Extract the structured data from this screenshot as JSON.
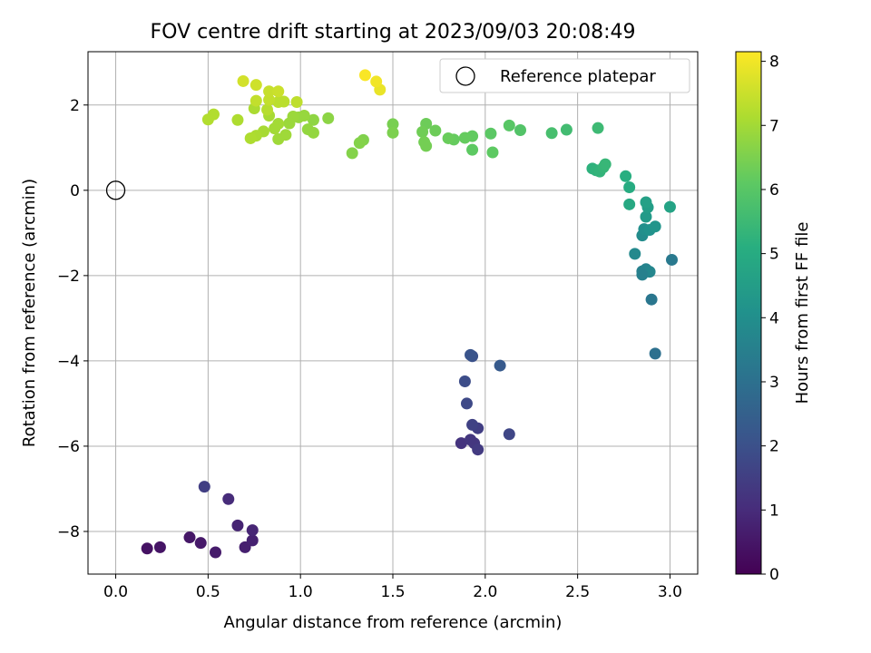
{
  "chart_data": {
    "type": "scatter",
    "title": "FOV centre drift starting at 2023/09/03 20:08:49",
    "xlabel": "Angular distance from reference (arcmin)",
    "ylabel": "Rotation from reference (arcmin)",
    "xlim": [
      -0.15,
      3.15
    ],
    "ylim": [
      -9.0,
      3.25
    ],
    "xticks": [
      0.0,
      0.5,
      1.0,
      1.5,
      2.0,
      2.5,
      3.0
    ],
    "xtick_labels": [
      "0.0",
      "0.5",
      "1.0",
      "1.5",
      "2.0",
      "2.5",
      "3.0"
    ],
    "yticks": [
      -8,
      -6,
      -4,
      -2,
      0,
      2
    ],
    "ytick_labels": [
      "−8",
      "−6",
      "−4",
      "−2",
      "0",
      "2"
    ],
    "grid": true,
    "legend": {
      "label": "Reference platepar",
      "position": "top-right"
    },
    "reference_point": {
      "x": 0.0,
      "y": 0.0
    },
    "colorbar": {
      "label": "Hours from first FF file",
      "min": 0,
      "max": 8.15,
      "ticks": [
        0,
        1,
        2,
        3,
        4,
        5,
        6,
        7,
        8
      ],
      "colormap": "viridis"
    },
    "points": [
      {
        "x": 0.17,
        "y": -8.4,
        "c": 0.4
      },
      {
        "x": 0.24,
        "y": -8.37,
        "c": 0.45
      },
      {
        "x": 0.4,
        "y": -8.14,
        "c": 0.5
      },
      {
        "x": 0.46,
        "y": -8.27,
        "c": 0.55
      },
      {
        "x": 0.54,
        "y": -8.49,
        "c": 0.6
      },
      {
        "x": 0.7,
        "y": -8.37,
        "c": 0.7
      },
      {
        "x": 0.74,
        "y": -8.21,
        "c": 0.75
      },
      {
        "x": 0.66,
        "y": -7.86,
        "c": 0.8
      },
      {
        "x": 0.74,
        "y": -7.97,
        "c": 0.85
      },
      {
        "x": 0.61,
        "y": -7.24,
        "c": 1.0
      },
      {
        "x": 0.48,
        "y": -6.95,
        "c": 1.5
      },
      {
        "x": 1.87,
        "y": -5.93,
        "c": 1.2
      },
      {
        "x": 1.92,
        "y": -5.85,
        "c": 1.3
      },
      {
        "x": 1.94,
        "y": -5.93,
        "c": 1.3
      },
      {
        "x": 1.96,
        "y": -6.08,
        "c": 1.4
      },
      {
        "x": 1.96,
        "y": -5.58,
        "c": 1.5
      },
      {
        "x": 1.93,
        "y": -5.5,
        "c": 1.6
      },
      {
        "x": 2.13,
        "y": -5.72,
        "c": 1.7
      },
      {
        "x": 1.9,
        "y": -5.0,
        "c": 1.8
      },
      {
        "x": 1.89,
        "y": -4.48,
        "c": 1.9
      },
      {
        "x": 1.93,
        "y": -3.89,
        "c": 2.0
      },
      {
        "x": 1.92,
        "y": -3.86,
        "c": 2.1
      },
      {
        "x": 2.08,
        "y": -4.11,
        "c": 2.3
      },
      {
        "x": 2.92,
        "y": -3.83,
        "c": 3.0
      },
      {
        "x": 2.9,
        "y": -2.56,
        "c": 3.2
      },
      {
        "x": 3.01,
        "y": -1.63,
        "c": 3.3
      },
      {
        "x": 2.85,
        "y": -1.9,
        "c": 3.5
      },
      {
        "x": 2.87,
        "y": -1.85,
        "c": 3.6
      },
      {
        "x": 2.89,
        "y": -1.91,
        "c": 3.7
      },
      {
        "x": 2.85,
        "y": -1.98,
        "c": 3.5
      },
      {
        "x": 2.81,
        "y": -1.49,
        "c": 3.8
      },
      {
        "x": 2.85,
        "y": -1.06,
        "c": 3.9
      },
      {
        "x": 2.86,
        "y": -0.91,
        "c": 4.0
      },
      {
        "x": 2.89,
        "y": -0.93,
        "c": 4.1
      },
      {
        "x": 2.92,
        "y": -0.85,
        "c": 4.2
      },
      {
        "x": 2.87,
        "y": -0.62,
        "c": 4.4
      },
      {
        "x": 2.88,
        "y": -0.4,
        "c": 4.5
      },
      {
        "x": 2.87,
        "y": -0.28,
        "c": 4.6
      },
      {
        "x": 3.0,
        "y": -0.39,
        "c": 4.7
      },
      {
        "x": 2.78,
        "y": -0.33,
        "c": 4.9
      },
      {
        "x": 2.78,
        "y": 0.07,
        "c": 5.0
      },
      {
        "x": 2.76,
        "y": 0.33,
        "c": 5.1
      },
      {
        "x": 2.58,
        "y": 0.51,
        "c": 5.2
      },
      {
        "x": 2.6,
        "y": 0.47,
        "c": 5.25
      },
      {
        "x": 2.62,
        "y": 0.44,
        "c": 5.3
      },
      {
        "x": 2.64,
        "y": 0.54,
        "c": 5.35
      },
      {
        "x": 2.65,
        "y": 0.61,
        "c": 5.4
      },
      {
        "x": 2.61,
        "y": 1.46,
        "c": 5.5
      },
      {
        "x": 2.44,
        "y": 1.42,
        "c": 5.6
      },
      {
        "x": 2.36,
        "y": 1.34,
        "c": 5.7
      },
      {
        "x": 2.19,
        "y": 1.41,
        "c": 5.9
      },
      {
        "x": 2.13,
        "y": 1.52,
        "c": 6.0
      },
      {
        "x": 2.03,
        "y": 1.33,
        "c": 6.05
      },
      {
        "x": 2.04,
        "y": 0.89,
        "c": 6.1
      },
      {
        "x": 1.93,
        "y": 0.95,
        "c": 6.1
      },
      {
        "x": 1.93,
        "y": 1.27,
        "c": 6.15
      },
      {
        "x": 1.89,
        "y": 1.23,
        "c": 6.2
      },
      {
        "x": 1.83,
        "y": 1.19,
        "c": 6.2
      },
      {
        "x": 1.8,
        "y": 1.22,
        "c": 6.25
      },
      {
        "x": 1.73,
        "y": 1.4,
        "c": 6.3
      },
      {
        "x": 1.68,
        "y": 1.56,
        "c": 6.3
      },
      {
        "x": 1.66,
        "y": 1.37,
        "c": 6.35
      },
      {
        "x": 1.67,
        "y": 1.13,
        "c": 6.4
      },
      {
        "x": 1.68,
        "y": 1.04,
        "c": 6.4
      },
      {
        "x": 1.5,
        "y": 1.55,
        "c": 6.45
      },
      {
        "x": 1.5,
        "y": 1.35,
        "c": 6.5
      },
      {
        "x": 1.34,
        "y": 1.18,
        "c": 6.55
      },
      {
        "x": 1.32,
        "y": 1.11,
        "c": 6.6
      },
      {
        "x": 1.28,
        "y": 0.87,
        "c": 6.6
      },
      {
        "x": 1.15,
        "y": 1.69,
        "c": 6.7
      },
      {
        "x": 1.07,
        "y": 1.65,
        "c": 6.75
      },
      {
        "x": 1.07,
        "y": 1.35,
        "c": 6.8
      },
      {
        "x": 1.04,
        "y": 1.43,
        "c": 6.8
      },
      {
        "x": 1.02,
        "y": 1.75,
        "c": 6.85
      },
      {
        "x": 0.99,
        "y": 1.71,
        "c": 6.85
      },
      {
        "x": 0.96,
        "y": 1.73,
        "c": 6.9
      },
      {
        "x": 0.94,
        "y": 1.57,
        "c": 6.9
      },
      {
        "x": 0.92,
        "y": 1.3,
        "c": 6.95
      },
      {
        "x": 0.88,
        "y": 1.2,
        "c": 6.95
      },
      {
        "x": 0.88,
        "y": 1.56,
        "c": 7.0
      },
      {
        "x": 0.86,
        "y": 1.45,
        "c": 7.0
      },
      {
        "x": 0.83,
        "y": 1.75,
        "c": 7.05
      },
      {
        "x": 0.8,
        "y": 1.38,
        "c": 7.05
      },
      {
        "x": 0.75,
        "y": 1.92,
        "c": 7.1
      },
      {
        "x": 0.76,
        "y": 1.28,
        "c": 7.1
      },
      {
        "x": 0.73,
        "y": 1.22,
        "c": 7.15
      },
      {
        "x": 0.66,
        "y": 1.65,
        "c": 7.15
      },
      {
        "x": 0.53,
        "y": 1.78,
        "c": 7.2
      },
      {
        "x": 0.5,
        "y": 1.66,
        "c": 7.2
      },
      {
        "x": 0.82,
        "y": 1.89,
        "c": 7.25
      },
      {
        "x": 0.88,
        "y": 2.07,
        "c": 7.3
      },
      {
        "x": 0.91,
        "y": 2.08,
        "c": 7.3
      },
      {
        "x": 0.98,
        "y": 2.07,
        "c": 7.35
      },
      {
        "x": 0.83,
        "y": 2.12,
        "c": 7.4
      },
      {
        "x": 0.76,
        "y": 2.1,
        "c": 7.4
      },
      {
        "x": 0.83,
        "y": 2.32,
        "c": 7.45
      },
      {
        "x": 0.88,
        "y": 2.32,
        "c": 7.5
      },
      {
        "x": 0.76,
        "y": 2.47,
        "c": 7.55
      },
      {
        "x": 0.69,
        "y": 2.56,
        "c": 7.6
      },
      {
        "x": 1.43,
        "y": 2.36,
        "c": 7.9
      },
      {
        "x": 1.41,
        "y": 2.55,
        "c": 8.0
      },
      {
        "x": 1.35,
        "y": 2.7,
        "c": 8.1
      }
    ]
  }
}
